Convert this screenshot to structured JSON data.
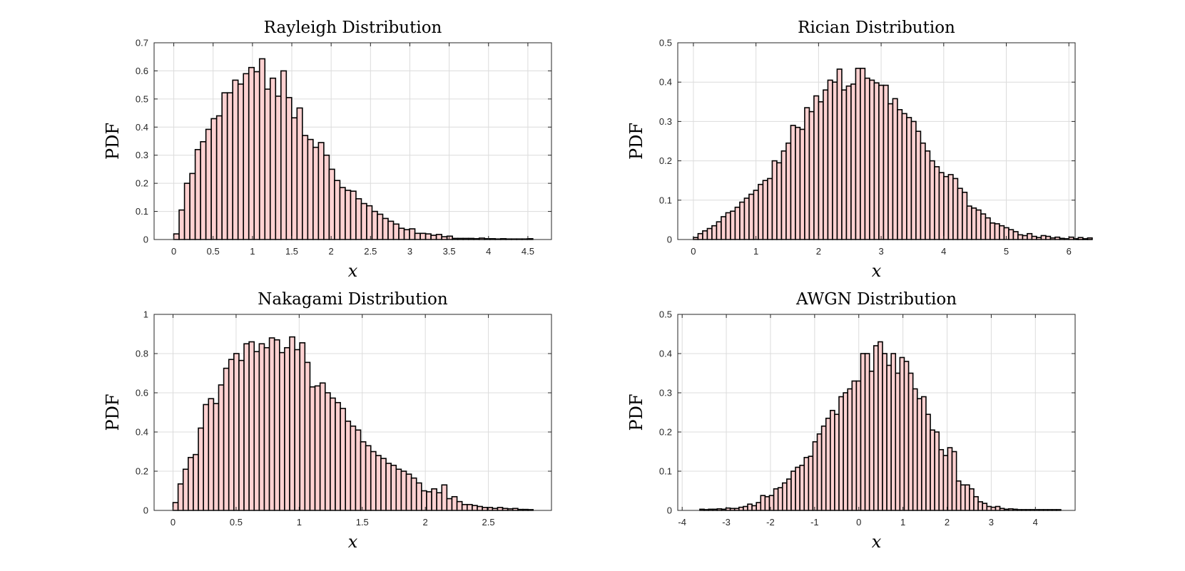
{
  "chart_data": [
    {
      "type": "bar",
      "id": "rayleigh",
      "title": "Rayleigh Distribution",
      "xlabel": "x",
      "ylabel": "PDF",
      "bar_color": "#ffd1d1",
      "xlim": [
        -0.25,
        4.8
      ],
      "ylim": [
        0,
        0.7
      ],
      "xticks": [
        0,
        0.5,
        1,
        1.5,
        2,
        2.5,
        3,
        3.5,
        4,
        4.5
      ],
      "xtick_labels": [
        "0",
        "0.5",
        "1",
        "1.5",
        "2",
        "2.5",
        "3",
        "3.5",
        "4",
        "4.5"
      ],
      "yticks": [
        0,
        0.1,
        0.2,
        0.3,
        0.4,
        0.5,
        0.6,
        0.7
      ],
      "ytick_labels": [
        "0",
        "0.1",
        "0.2",
        "0.3",
        "0.4",
        "0.5",
        "0.6",
        "0.7"
      ],
      "bin_start": 0,
      "bin_width": 0.0681,
      "values": [
        0.02,
        0.105,
        0.2,
        0.235,
        0.32,
        0.348,
        0.392,
        0.43,
        0.44,
        0.522,
        0.522,
        0.567,
        0.553,
        0.59,
        0.612,
        0.597,
        0.643,
        0.535,
        0.574,
        0.51,
        0.6,
        0.505,
        0.433,
        0.468,
        0.37,
        0.356,
        0.328,
        0.345,
        0.3,
        0.25,
        0.21,
        0.185,
        0.175,
        0.172,
        0.145,
        0.128,
        0.12,
        0.1,
        0.09,
        0.075,
        0.065,
        0.055,
        0.04,
        0.035,
        0.038,
        0.022,
        0.022,
        0.02,
        0.015,
        0.018,
        0.01,
        0.012,
        0.004,
        0.004,
        0.004,
        0.004,
        0.003,
        0.005,
        0.003,
        0.003,
        0.002,
        0.003,
        0.002,
        0.002,
        0.002,
        0.002,
        0.003
      ]
    },
    {
      "type": "bar",
      "id": "rician",
      "title": "Rician Distribution",
      "xlabel": "x",
      "ylabel": "PDF",
      "bar_color": "#ffd1d1",
      "xlim": [
        -0.25,
        6.1
      ],
      "ylim": [
        0,
        0.5
      ],
      "xticks": [
        0,
        1,
        2,
        3,
        4,
        5,
        6
      ],
      "xtick_labels": [
        "0",
        "1",
        "2",
        "3",
        "4",
        "5",
        "6"
      ],
      "yticks": [
        0,
        0.1,
        0.2,
        0.3,
        0.4,
        0.5
      ],
      "ytick_labels": [
        "0",
        "0.1",
        "0.2",
        "0.3",
        "0.4",
        "0.5"
      ],
      "bin_start": 0,
      "bin_width": 0.0741,
      "values": [
        0.005,
        0.015,
        0.022,
        0.028,
        0.035,
        0.045,
        0.058,
        0.068,
        0.072,
        0.082,
        0.095,
        0.105,
        0.115,
        0.125,
        0.14,
        0.15,
        0.155,
        0.2,
        0.195,
        0.225,
        0.245,
        0.29,
        0.285,
        0.28,
        0.335,
        0.325,
        0.365,
        0.35,
        0.38,
        0.405,
        0.4,
        0.433,
        0.38,
        0.39,
        0.395,
        0.435,
        0.435,
        0.41,
        0.405,
        0.398,
        0.392,
        0.392,
        0.345,
        0.358,
        0.33,
        0.32,
        0.31,
        0.3,
        0.275,
        0.245,
        0.225,
        0.2,
        0.185,
        0.17,
        0.16,
        0.165,
        0.155,
        0.13,
        0.12,
        0.085,
        0.08,
        0.075,
        0.065,
        0.055,
        0.042,
        0.04,
        0.035,
        0.03,
        0.025,
        0.02,
        0.012,
        0.01,
        0.015,
        0.008,
        0.005,
        0.01,
        0.008,
        0.004,
        0.006,
        0.003,
        0.002,
        0.006,
        0.002,
        0.005,
        0.002,
        0.004
      ]
    },
    {
      "type": "bar",
      "id": "nakagami",
      "title": "Nakagami Distribution",
      "xlabel": "x",
      "ylabel": "PDF",
      "bar_color": "#ffd1d1",
      "xlim": [
        -0.15,
        3.0
      ],
      "ylim": [
        0,
        1
      ],
      "xticks": [
        0,
        0.5,
        1,
        1.5,
        2,
        2.5
      ],
      "xtick_labels": [
        "0",
        "0.5",
        "1",
        "1.5",
        "2",
        "2.5"
      ],
      "yticks": [
        0,
        0.2,
        0.4,
        0.6,
        0.8,
        1
      ],
      "ytick_labels": [
        "0",
        "0.2",
        "0.4",
        "0.6",
        "0.8",
        "1"
      ],
      "bin_start": 0,
      "bin_width": 0.0402,
      "values": [
        0.04,
        0.135,
        0.21,
        0.27,
        0.285,
        0.42,
        0.54,
        0.57,
        0.545,
        0.64,
        0.725,
        0.77,
        0.8,
        0.765,
        0.85,
        0.86,
        0.81,
        0.85,
        0.83,
        0.88,
        0.87,
        0.805,
        0.83,
        0.885,
        0.82,
        0.855,
        0.755,
        0.63,
        0.635,
        0.65,
        0.6,
        0.573,
        0.55,
        0.52,
        0.455,
        0.43,
        0.41,
        0.35,
        0.33,
        0.3,
        0.28,
        0.265,
        0.24,
        0.23,
        0.21,
        0.2,
        0.185,
        0.165,
        0.14,
        0.1,
        0.095,
        0.11,
        0.09,
        0.13,
        0.06,
        0.07,
        0.045,
        0.03,
        0.03,
        0.025,
        0.02,
        0.015,
        0.015,
        0.01,
        0.015,
        0.01,
        0.008,
        0.01,
        0.005,
        0.005,
        0.004
      ]
    },
    {
      "type": "bar",
      "id": "awgn",
      "title": "AWGN Distribution",
      "xlabel": "x",
      "ylabel": "PDF",
      "bar_color": "#ffd1d1",
      "xlim": [
        -4.1,
        4.9
      ],
      "ylim": [
        0,
        0.5
      ],
      "xticks": [
        -4,
        -3,
        -2,
        -1,
        0,
        1,
        2,
        3,
        4
      ],
      "xtick_labels": [
        "-4",
        "-3",
        "-2",
        "-1",
        "0",
        "1",
        "2",
        "3",
        "4"
      ],
      "yticks": [
        0,
        0.1,
        0.2,
        0.3,
        0.4,
        0.5
      ],
      "ytick_labels": [
        "0",
        "0.1",
        "0.2",
        "0.3",
        "0.4",
        "0.5"
      ],
      "bin_start": -3.6,
      "bin_width": 0.0985,
      "values": [
        0.003,
        0.002,
        0.003,
        0.003,
        0.004,
        0.003,
        0.006,
        0.005,
        0.005,
        0.008,
        0.01,
        0.016,
        0.012,
        0.02,
        0.038,
        0.035,
        0.038,
        0.055,
        0.058,
        0.07,
        0.08,
        0.1,
        0.11,
        0.115,
        0.135,
        0.138,
        0.175,
        0.195,
        0.215,
        0.235,
        0.255,
        0.245,
        0.29,
        0.3,
        0.31,
        0.33,
        0.33,
        0.4,
        0.4,
        0.355,
        0.42,
        0.43,
        0.4,
        0.37,
        0.4,
        0.35,
        0.39,
        0.38,
        0.35,
        0.31,
        0.285,
        0.29,
        0.245,
        0.205,
        0.2,
        0.155,
        0.14,
        0.16,
        0.15,
        0.075,
        0.065,
        0.065,
        0.055,
        0.035,
        0.022,
        0.018,
        0.01,
        0.008,
        0.01,
        0.005,
        0.003,
        0.004,
        0.003,
        0.002,
        0.002,
        0.002,
        0.002,
        0.002,
        0.002,
        0.002,
        0.002,
        0.002,
        0.002
      ]
    }
  ]
}
